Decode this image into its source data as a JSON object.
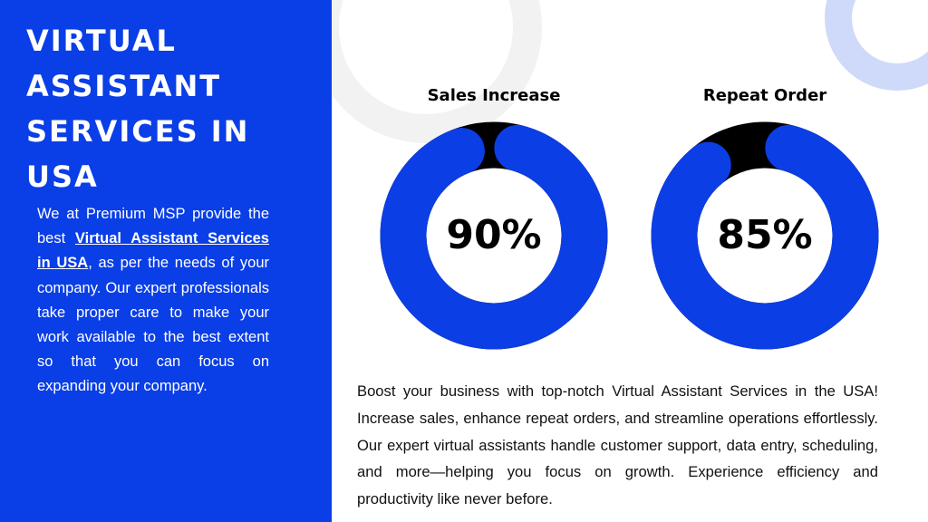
{
  "left": {
    "title": "VIRTUAL ASSISTANT SERVICES IN USA",
    "paragraph": [
      "We at Premium MSP provide the best ",
      "Virtual Assistant Services in USA",
      ", as per the needs of your company. Our expert professionals take proper care to make your work available to the best extent so that you can focus on expanding your company."
    ]
  },
  "chart_data": [
    {
      "type": "donut",
      "title": "Sales Increase",
      "values": [
        90
      ],
      "value_labels": [
        "90%"
      ],
      "color": "#0c3ee6",
      "track_color": "#000000"
    },
    {
      "type": "donut",
      "title": "Repeat Order",
      "values": [
        85
      ],
      "value_labels": [
        "85%"
      ],
      "color": "#0c3ee6",
      "track_color": "#000000"
    }
  ],
  "body": "Boost your business with top-notch Virtual Assistant Services in the USA! Increase sales, enhance repeat orders, and streamline operations effortlessly. Our expert virtual assistants handle customer support, data entry, scheduling, and more—helping you focus on growth. Experience efficiency and productivity like never before."
}
